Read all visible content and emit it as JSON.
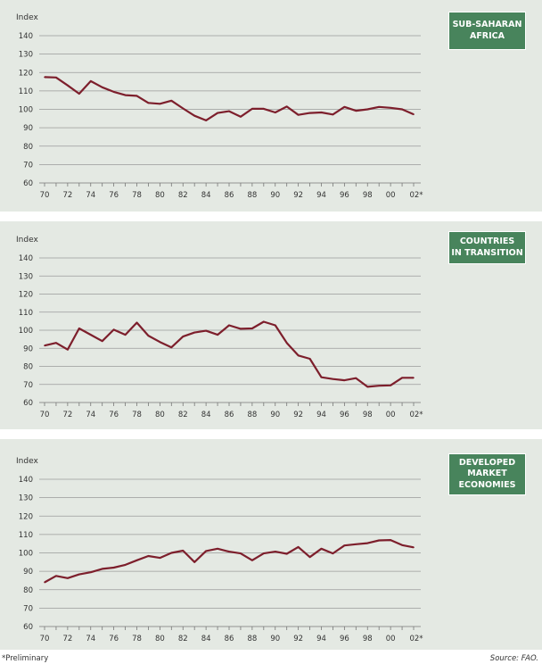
{
  "colors": {
    "line": "#7d1f2c",
    "badge": "#48845c",
    "grid": "#9a9a9a",
    "background": "#e4e9e3"
  },
  "footer": {
    "note": "*Preliminary",
    "source": "Source: FAO."
  },
  "chart_data": [
    {
      "type": "line",
      "title": "SUB-SAHARAN\nAFRICA",
      "ylabel": "Index",
      "ylim": [
        60,
        140
      ],
      "yticks": [
        60,
        70,
        80,
        90,
        100,
        110,
        120,
        130,
        140
      ],
      "xticks": [
        "70",
        "72",
        "74",
        "76",
        "78",
        "80",
        "82",
        "84",
        "86",
        "88",
        "90",
        "92",
        "94",
        "96",
        "98",
        "00",
        "02*"
      ],
      "x": [
        1970,
        1971,
        1972,
        1973,
        1974,
        1975,
        1976,
        1977,
        1978,
        1979,
        1980,
        1981,
        1982,
        1983,
        1984,
        1985,
        1986,
        1987,
        1988,
        1989,
        1990,
        1991,
        1992,
        1993,
        1994,
        1995,
        1996,
        1997,
        1998,
        1999,
        2000,
        2001,
        2002
      ],
      "values": [
        117.5,
        117.3,
        113,
        108.5,
        115.3,
        112,
        109.5,
        107.7,
        107.3,
        103.5,
        103,
        104.7,
        100.5,
        96.5,
        94,
        98,
        99,
        96,
        100.3,
        100.3,
        98.3,
        101.5,
        97,
        98,
        98.3,
        97.2,
        101.3,
        99.2,
        100,
        101.3,
        100.8,
        100,
        97.3
      ]
    },
    {
      "type": "line",
      "title": "COUNTRIES\nIN TRANSITION",
      "ylabel": "Index",
      "ylim": [
        60,
        140
      ],
      "yticks": [
        60,
        70,
        80,
        90,
        100,
        110,
        120,
        130,
        140
      ],
      "xticks": [
        "70",
        "72",
        "74",
        "76",
        "78",
        "80",
        "82",
        "84",
        "86",
        "88",
        "90",
        "92",
        "94",
        "96",
        "98",
        "00",
        "02*"
      ],
      "x": [
        1970,
        1971,
        1972,
        1973,
        1974,
        1975,
        1976,
        1977,
        1978,
        1979,
        1980,
        1981,
        1982,
        1983,
        1984,
        1985,
        1986,
        1987,
        1988,
        1989,
        1990,
        1991,
        1992,
        1993,
        1994,
        1995,
        1996,
        1997,
        1998,
        1999,
        2000,
        2001,
        2002
      ],
      "values": [
        91.5,
        93,
        89.3,
        101,
        97.5,
        94,
        100.3,
        97.5,
        104.2,
        97,
        93.5,
        90.5,
        96.5,
        98.7,
        99.7,
        97.5,
        102.7,
        100.8,
        101,
        104.7,
        102.7,
        93,
        86,
        84.2,
        74,
        73,
        72.3,
        73.5,
        68.7,
        69.3,
        69.5,
        73.7,
        73.7
      ]
    },
    {
      "type": "line",
      "title": "DEVELOPED\nMARKET\nECONOMIES",
      "ylabel": "Index",
      "ylim": [
        60,
        140
      ],
      "yticks": [
        60,
        70,
        80,
        90,
        100,
        110,
        120,
        130,
        140
      ],
      "xticks": [
        "70",
        "72",
        "74",
        "76",
        "78",
        "80",
        "82",
        "84",
        "86",
        "88",
        "90",
        "92",
        "94",
        "96",
        "98",
        "00",
        "02*"
      ],
      "x": [
        1970,
        1971,
        1972,
        1973,
        1974,
        1975,
        1976,
        1977,
        1978,
        1979,
        1980,
        1981,
        1982,
        1983,
        1984,
        1985,
        1986,
        1987,
        1988,
        1989,
        1990,
        1991,
        1992,
        1993,
        1994,
        1995,
        1996,
        1997,
        1998,
        1999,
        2000,
        2001,
        2002
      ],
      "values": [
        84,
        87.5,
        86.3,
        88.3,
        89.5,
        91.3,
        92,
        93.5,
        96,
        98.3,
        97.3,
        100,
        101.2,
        95,
        101,
        102.3,
        100.7,
        99.7,
        96,
        99.7,
        100.7,
        99.5,
        103.2,
        97.7,
        102.3,
        99.7,
        104,
        104.7,
        105.3,
        106.8,
        107,
        104.2,
        103
      ]
    }
  ]
}
